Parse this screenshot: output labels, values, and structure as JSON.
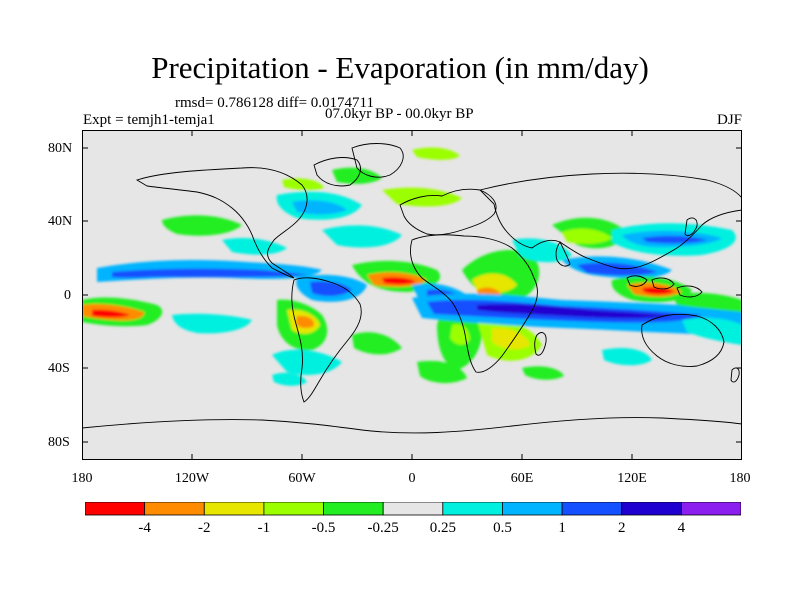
{
  "title": "Precipitation - Evaporation (in mm/day)",
  "stats": "rmsd= 0.786128 diff= 0.0174711",
  "expt": "Expt = temjh1-temja1",
  "period": "07.0kyr BP - 00.0kyr BP",
  "season": "DJF",
  "lat_labels": [
    "80N",
    "40N",
    "0",
    "40S",
    "80S"
  ],
  "lon_labels": [
    "180",
    "120W",
    "60W",
    "0",
    "60E",
    "120E",
    "180"
  ],
  "colorbar": {
    "colors": [
      "#ff0000",
      "#ff8c00",
      "#e6e600",
      "#9bff00",
      "#22ee22",
      "#e6e6e6",
      "#00f0e0",
      "#00b4ff",
      "#1450ff",
      "#2000d0",
      "#8a1ff0"
    ],
    "labels": [
      "-4",
      "-2",
      "-1",
      "-0.5",
      "-0.25",
      "0.25",
      "0.5",
      "1",
      "2",
      "4"
    ]
  }
}
